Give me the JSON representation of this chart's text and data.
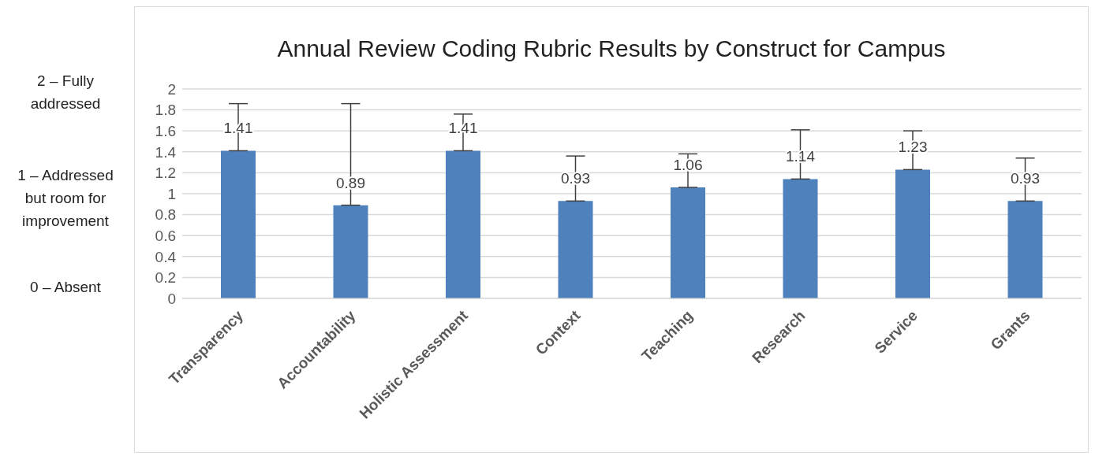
{
  "chart_data": {
    "type": "bar",
    "title": "Annual Review Coding Rubric Results by Construct for Campus",
    "categories": [
      "Transparency",
      "Accountability",
      "Holistic Assessment",
      "Context",
      "Teaching",
      "Research",
      "Service",
      "Grants"
    ],
    "values": [
      1.41,
      0.89,
      1.41,
      0.93,
      1.06,
      1.14,
      1.23,
      0.93
    ],
    "errors": [
      [
        1.41,
        1.86
      ],
      [
        0.89,
        1.86
      ],
      [
        1.41,
        1.76
      ],
      [
        0.93,
        1.36
      ],
      [
        1.06,
        1.38
      ],
      [
        1.14,
        1.61
      ],
      [
        1.23,
        1.6
      ],
      [
        0.93,
        1.34
      ]
    ],
    "color": "#4f81bd",
    "ylim": [
      0,
      2
    ],
    "yticks": [
      0,
      0.2,
      0.4,
      0.6,
      0.8,
      1,
      1.2,
      1.4,
      1.6,
      1.8,
      2
    ],
    "grid": "y",
    "legend": false,
    "data_labels": true,
    "annotations": [
      "2 – Fully addressed",
      "1 – Addressed but room for improvement",
      "0 – Absent"
    ]
  }
}
